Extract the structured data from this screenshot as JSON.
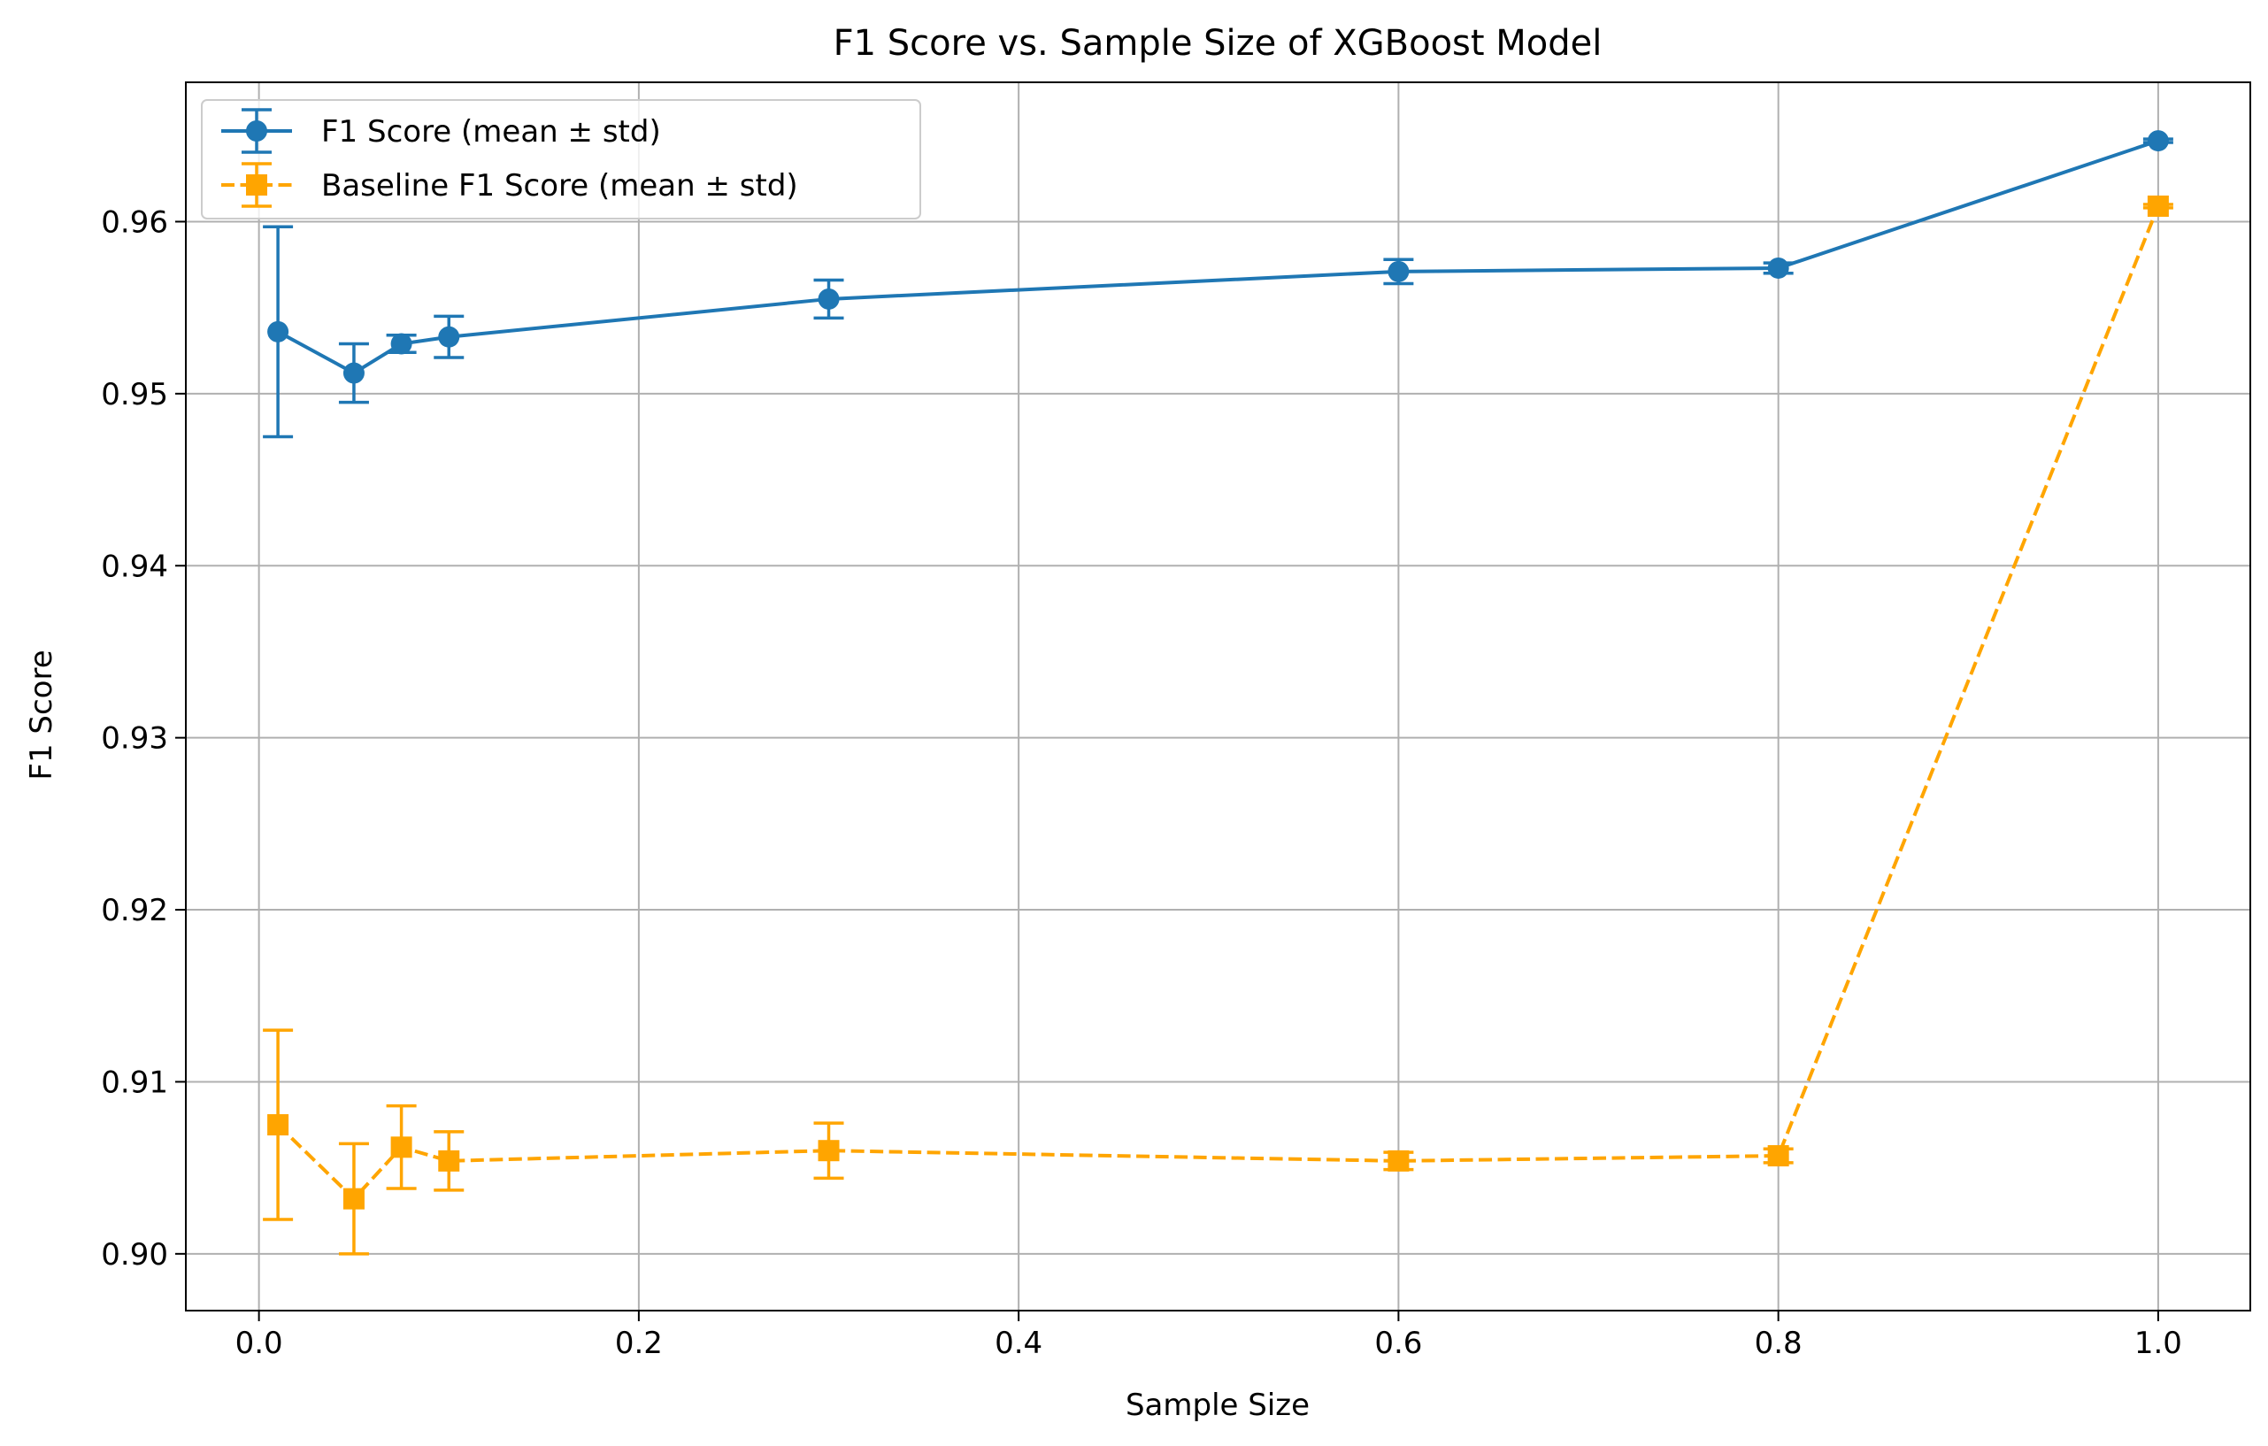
{
  "chart_data": {
    "type": "line",
    "title": "F1 Score vs. Sample Size of XGBoost Model",
    "xlabel": "Sample Size",
    "ylabel": "F1 Score",
    "xlim": [
      -0.0385,
      1.0485
    ],
    "ylim": [
      0.8967,
      0.9681
    ],
    "xticks": [
      0.0,
      0.2,
      0.4,
      0.6,
      0.8,
      1.0
    ],
    "xtick_labels": [
      "0.0",
      "0.2",
      "0.4",
      "0.6",
      "0.8",
      "1.0"
    ],
    "yticks": [
      0.9,
      0.91,
      0.92,
      0.93,
      0.94,
      0.95,
      0.96
    ],
    "ytick_labels": [
      "0.90",
      "0.91",
      "0.92",
      "0.93",
      "0.94",
      "0.95",
      "0.96"
    ],
    "grid": true,
    "legend_position": "top-left",
    "series": [
      {
        "name": "F1 Score (mean ± std)",
        "color": "#1f77b4",
        "marker": "circle",
        "linestyle": "solid",
        "x": [
          0.01,
          0.05,
          0.075,
          0.1,
          0.3,
          0.6,
          0.8,
          1.0
        ],
        "y": [
          0.9536,
          0.9512,
          0.9529,
          0.9533,
          0.9555,
          0.9571,
          0.9573,
          0.9647
        ],
        "err": [
          0.0061,
          0.0017,
          0.0005,
          0.0012,
          0.0011,
          0.0007,
          0.0003,
          0.0001
        ]
      },
      {
        "name": "Baseline F1 Score (mean ± std)",
        "color": "#ffa500",
        "marker": "square",
        "linestyle": "dashed",
        "x": [
          0.01,
          0.05,
          0.075,
          0.1,
          0.3,
          0.6,
          0.8,
          1.0
        ],
        "y": [
          0.9075,
          0.9032,
          0.9062,
          0.9054,
          0.906,
          0.9054,
          0.9057,
          0.9609
        ],
        "err": [
          0.0055,
          0.0032,
          0.0024,
          0.0017,
          0.0016,
          0.0005,
          0.0004,
          0.0001
        ]
      }
    ]
  }
}
